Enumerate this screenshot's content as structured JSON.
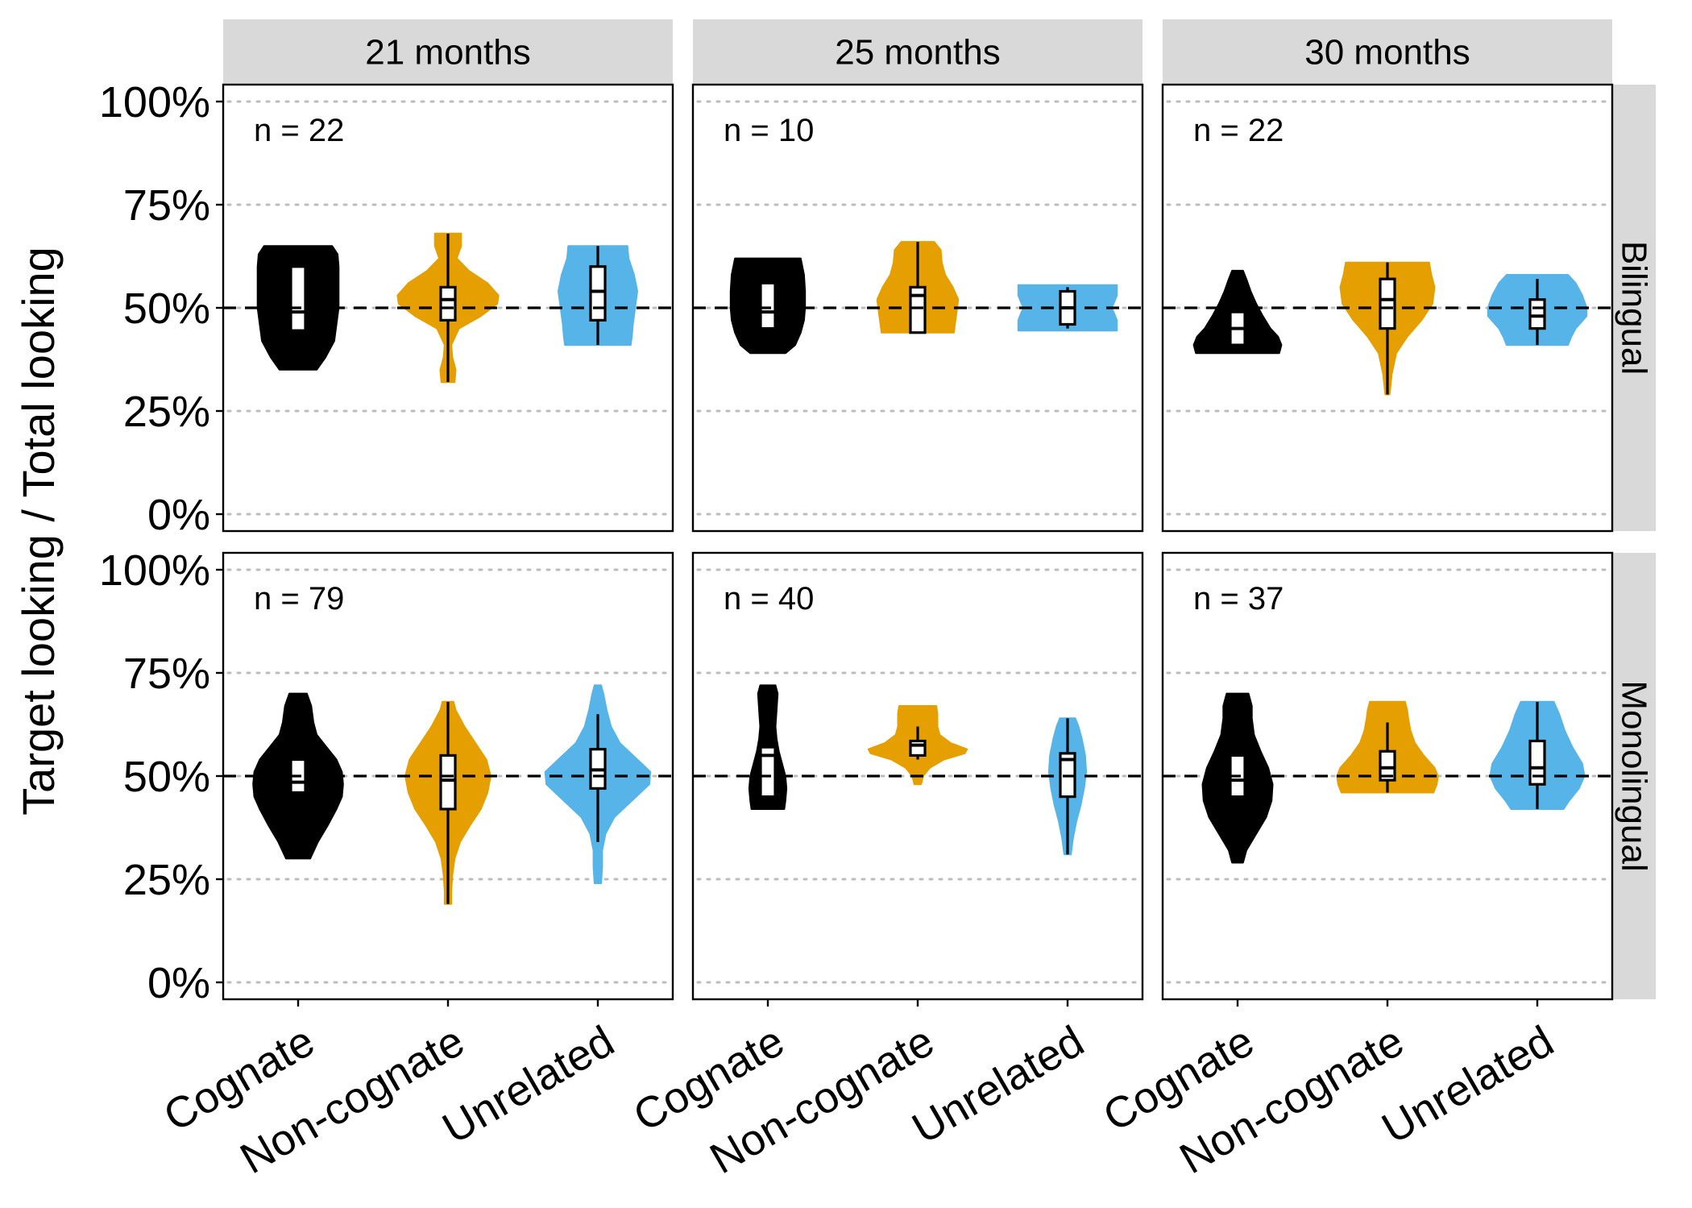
{
  "chart_data": {
    "type": "violin",
    "ylabel": "Target looking / Total looking",
    "ylim": [
      0,
      1
    ],
    "y_ticks": [
      {
        "value": 0,
        "label": "0%"
      },
      {
        "value": 0.25,
        "label": "25%"
      },
      {
        "value": 0.5,
        "label": "50%"
      },
      {
        "value": 0.75,
        "label": "75%"
      },
      {
        "value": 1,
        "label": "100%"
      }
    ],
    "reference_line": 0.5,
    "grid": "horizontal dotted",
    "categories": [
      "Cognate",
      "Non-cognate",
      "Unrelated"
    ],
    "colors": {
      "Cognate": "#000000",
      "Non-cognate": "#E69F00",
      "Unrelated": "#56B4E9"
    },
    "columns": [
      "21 months",
      "25 months",
      "30 months"
    ],
    "rows": [
      "Bilingual",
      "Monolingual"
    ],
    "panels": [
      {
        "row": "Bilingual",
        "column": "21 months",
        "n_label": "n = 22",
        "groups": [
          {
            "category": "Cognate",
            "min": 0.35,
            "q1": 0.445,
            "median": 0.49,
            "q3": 0.6,
            "max": 0.65,
            "density": [
              [
                0.35,
                0.34
              ],
              [
                0.38,
                0.5
              ],
              [
                0.42,
                0.66
              ],
              [
                0.46,
                0.7
              ],
              [
                0.5,
                0.74
              ],
              [
                0.55,
                0.74
              ],
              [
                0.6,
                0.74
              ],
              [
                0.63,
                0.72
              ],
              [
                0.65,
                0.62
              ]
            ]
          },
          {
            "category": "Non-cognate",
            "min": 0.32,
            "q1": 0.47,
            "median": 0.52,
            "q3": 0.55,
            "max": 0.68,
            "density": [
              [
                0.32,
                0.12
              ],
              [
                0.35,
                0.14
              ],
              [
                0.38,
                0.08
              ],
              [
                0.41,
                0.06
              ],
              [
                0.45,
                0.2
              ],
              [
                0.48,
                0.6
              ],
              [
                0.51,
                0.9
              ],
              [
                0.53,
                0.92
              ],
              [
                0.56,
                0.72
              ],
              [
                0.59,
                0.38
              ],
              [
                0.62,
                0.16
              ],
              [
                0.65,
                0.24
              ],
              [
                0.68,
                0.24
              ]
            ]
          },
          {
            "category": "Unrelated",
            "min": 0.41,
            "q1": 0.47,
            "median": 0.54,
            "q3": 0.6,
            "max": 0.65,
            "density": [
              [
                0.41,
                0.6
              ],
              [
                0.43,
                0.62
              ],
              [
                0.46,
                0.64
              ],
              [
                0.5,
                0.68
              ],
              [
                0.54,
                0.72
              ],
              [
                0.58,
                0.66
              ],
              [
                0.62,
                0.56
              ],
              [
                0.65,
                0.54
              ]
            ]
          }
        ]
      },
      {
        "row": "Bilingual",
        "column": "25 months",
        "n_label": "n = 10",
        "groups": [
          {
            "category": "Cognate",
            "min": 0.39,
            "q1": 0.45,
            "median": 0.49,
            "q3": 0.56,
            "max": 0.62,
            "density": [
              [
                0.39,
                0.32
              ],
              [
                0.41,
                0.5
              ],
              [
                0.44,
                0.6
              ],
              [
                0.47,
                0.66
              ],
              [
                0.5,
                0.68
              ],
              [
                0.54,
                0.68
              ],
              [
                0.58,
                0.66
              ],
              [
                0.62,
                0.6
              ]
            ]
          },
          {
            "category": "Non-cognate",
            "min": 0.44,
            "q1": 0.44,
            "median": 0.53,
            "q3": 0.55,
            "max": 0.66,
            "density": [
              [
                0.44,
                0.66
              ],
              [
                0.46,
                0.68
              ],
              [
                0.48,
                0.7
              ],
              [
                0.5,
                0.72
              ],
              [
                0.52,
                0.74
              ],
              [
                0.55,
                0.64
              ],
              [
                0.58,
                0.5
              ],
              [
                0.61,
                0.44
              ],
              [
                0.64,
                0.42
              ],
              [
                0.66,
                0.3
              ]
            ]
          },
          {
            "category": "Unrelated",
            "min": 0.45,
            "q1": 0.46,
            "median": 0.5,
            "q3": 0.54,
            "max": 0.55,
            "density": [
              [
                0.445,
                0.9
              ],
              [
                0.47,
                0.9
              ],
              [
                0.49,
                0.84
              ],
              [
                0.5,
                0.8
              ],
              [
                0.51,
                0.84
              ],
              [
                0.53,
                0.9
              ],
              [
                0.555,
                0.9
              ]
            ]
          }
        ]
      },
      {
        "row": "Bilingual",
        "column": "30 months",
        "n_label": "n = 22",
        "groups": [
          {
            "category": "Cognate",
            "min": 0.39,
            "q1": 0.41,
            "median": 0.45,
            "q3": 0.49,
            "max": 0.59,
            "density": [
              [
                0.39,
                0.76
              ],
              [
                0.41,
                0.8
              ],
              [
                0.43,
                0.74
              ],
              [
                0.45,
                0.6
              ],
              [
                0.48,
                0.46
              ],
              [
                0.51,
                0.34
              ],
              [
                0.54,
                0.24
              ],
              [
                0.57,
                0.16
              ],
              [
                0.59,
                0.1
              ]
            ]
          },
          {
            "category": "Non-cognate",
            "min": 0.29,
            "q1": 0.45,
            "median": 0.52,
            "q3": 0.57,
            "max": 0.61,
            "density": [
              [
                0.29,
                0.04
              ],
              [
                0.34,
                0.08
              ],
              [
                0.39,
                0.16
              ],
              [
                0.43,
                0.36
              ],
              [
                0.47,
                0.62
              ],
              [
                0.51,
                0.82
              ],
              [
                0.55,
                0.86
              ],
              [
                0.58,
                0.8
              ],
              [
                0.61,
                0.76
              ]
            ]
          },
          {
            "category": "Unrelated",
            "min": 0.41,
            "q1": 0.45,
            "median": 0.48,
            "q3": 0.52,
            "max": 0.57,
            "density": [
              [
                0.41,
                0.56
              ],
              [
                0.43,
                0.62
              ],
              [
                0.45,
                0.7
              ],
              [
                0.48,
                0.9
              ],
              [
                0.5,
                0.9
              ],
              [
                0.53,
                0.82
              ],
              [
                0.56,
                0.7
              ],
              [
                0.58,
                0.56
              ]
            ]
          }
        ]
      },
      {
        "row": "Monolingual",
        "column": "21 months",
        "n_label": "n = 79",
        "groups": [
          {
            "category": "Cognate",
            "min": 0.3,
            "q1": 0.46,
            "median": 0.485,
            "q3": 0.54,
            "max": 0.7,
            "density": [
              [
                0.3,
                0.22
              ],
              [
                0.34,
                0.36
              ],
              [
                0.38,
                0.54
              ],
              [
                0.42,
                0.7
              ],
              [
                0.45,
                0.8
              ],
              [
                0.48,
                0.82
              ],
              [
                0.51,
                0.8
              ],
              [
                0.54,
                0.7
              ],
              [
                0.57,
                0.52
              ],
              [
                0.6,
                0.34
              ],
              [
                0.63,
                0.28
              ],
              [
                0.67,
                0.24
              ],
              [
                0.7,
                0.16
              ]
            ]
          },
          {
            "category": "Non-cognate",
            "min": 0.19,
            "q1": 0.42,
            "median": 0.49,
            "q3": 0.55,
            "max": 0.68,
            "density": [
              [
                0.19,
                0.06
              ],
              [
                0.22,
                0.06
              ],
              [
                0.26,
                0.08
              ],
              [
                0.3,
                0.12
              ],
              [
                0.34,
                0.22
              ],
              [
                0.38,
                0.4
              ],
              [
                0.42,
                0.6
              ],
              [
                0.46,
                0.72
              ],
              [
                0.5,
                0.78
              ],
              [
                0.54,
                0.7
              ],
              [
                0.58,
                0.5
              ],
              [
                0.62,
                0.3
              ],
              [
                0.66,
                0.14
              ],
              [
                0.68,
                0.1
              ]
            ]
          },
          {
            "category": "Unrelated",
            "min": 0.34,
            "q1": 0.47,
            "median": 0.515,
            "q3": 0.565,
            "max": 0.65,
            "density": [
              [
                0.24,
                0.06
              ],
              [
                0.28,
                0.08
              ],
              [
                0.32,
                0.08
              ],
              [
                0.36,
                0.14
              ],
              [
                0.4,
                0.3
              ],
              [
                0.44,
                0.62
              ],
              [
                0.48,
                0.94
              ],
              [
                0.51,
                0.96
              ],
              [
                0.54,
                0.72
              ],
              [
                0.58,
                0.4
              ],
              [
                0.62,
                0.24
              ],
              [
                0.66,
                0.16
              ],
              [
                0.7,
                0.1
              ],
              [
                0.72,
                0.06
              ]
            ]
          }
        ]
      },
      {
        "row": "Monolingual",
        "column": "25 months",
        "n_label": "n = 40",
        "groups": [
          {
            "category": "Cognate",
            "min": 0.42,
            "q1": 0.45,
            "median": 0.55,
            "q3": 0.57,
            "max": 0.72,
            "density": [
              [
                0.42,
                0.3
              ],
              [
                0.44,
                0.32
              ],
              [
                0.47,
                0.34
              ],
              [
                0.5,
                0.32
              ],
              [
                0.53,
                0.26
              ],
              [
                0.56,
                0.2
              ],
              [
                0.59,
                0.16
              ],
              [
                0.62,
                0.14
              ],
              [
                0.66,
                0.16
              ],
              [
                0.7,
                0.18
              ],
              [
                0.72,
                0.14
              ]
            ]
          },
          {
            "category": "Non-cognate",
            "min": 0.54,
            "q1": 0.55,
            "median": 0.575,
            "q3": 0.585,
            "max": 0.62,
            "density": [
              [
                0.48,
                0.06
              ],
              [
                0.5,
                0.1
              ],
              [
                0.52,
                0.22
              ],
              [
                0.54,
                0.48
              ],
              [
                0.555,
                0.86
              ],
              [
                0.565,
                0.9
              ],
              [
                0.58,
                0.6
              ],
              [
                0.6,
                0.4
              ],
              [
                0.62,
                0.36
              ],
              [
                0.65,
                0.36
              ],
              [
                0.67,
                0.34
              ]
            ]
          },
          {
            "category": "Unrelated",
            "min": 0.31,
            "q1": 0.45,
            "median": 0.54,
            "q3": 0.555,
            "max": 0.64,
            "density": [
              [
                0.31,
                0.06
              ],
              [
                0.35,
                0.1
              ],
              [
                0.39,
                0.16
              ],
              [
                0.43,
                0.24
              ],
              [
                0.47,
                0.3
              ],
              [
                0.51,
                0.34
              ],
              [
                0.55,
                0.32
              ],
              [
                0.59,
                0.26
              ],
              [
                0.62,
                0.2
              ],
              [
                0.64,
                0.14
              ]
            ]
          }
        ]
      },
      {
        "row": "Monolingual",
        "column": "30 months",
        "n_label": "n = 37",
        "groups": [
          {
            "category": "Cognate",
            "min": 0.29,
            "q1": 0.45,
            "median": 0.49,
            "q3": 0.55,
            "max": 0.7,
            "density": [
              [
                0.29,
                0.1
              ],
              [
                0.32,
                0.16
              ],
              [
                0.36,
                0.34
              ],
              [
                0.4,
                0.52
              ],
              [
                0.44,
                0.62
              ],
              [
                0.48,
                0.64
              ],
              [
                0.52,
                0.56
              ],
              [
                0.56,
                0.42
              ],
              [
                0.6,
                0.3
              ],
              [
                0.64,
                0.26
              ],
              [
                0.67,
                0.26
              ],
              [
                0.7,
                0.2
              ]
            ]
          },
          {
            "category": "Non-cognate",
            "min": 0.46,
            "q1": 0.49,
            "median": 0.52,
            "q3": 0.56,
            "max": 0.63,
            "density": [
              [
                0.46,
                0.84
              ],
              [
                0.48,
                0.9
              ],
              [
                0.5,
                0.92
              ],
              [
                0.52,
                0.86
              ],
              [
                0.55,
                0.66
              ],
              [
                0.58,
                0.5
              ],
              [
                0.61,
                0.42
              ],
              [
                0.64,
                0.38
              ],
              [
                0.66,
                0.36
              ],
              [
                0.68,
                0.32
              ]
            ]
          },
          {
            "category": "Unrelated",
            "min": 0.42,
            "q1": 0.48,
            "median": 0.52,
            "q3": 0.585,
            "max": 0.68,
            "density": [
              [
                0.42,
                0.48
              ],
              [
                0.44,
                0.58
              ],
              [
                0.47,
                0.76
              ],
              [
                0.5,
                0.86
              ],
              [
                0.53,
                0.82
              ],
              [
                0.57,
                0.64
              ],
              [
                0.61,
                0.5
              ],
              [
                0.65,
                0.4
              ],
              [
                0.68,
                0.3
              ]
            ]
          }
        ]
      }
    ]
  }
}
